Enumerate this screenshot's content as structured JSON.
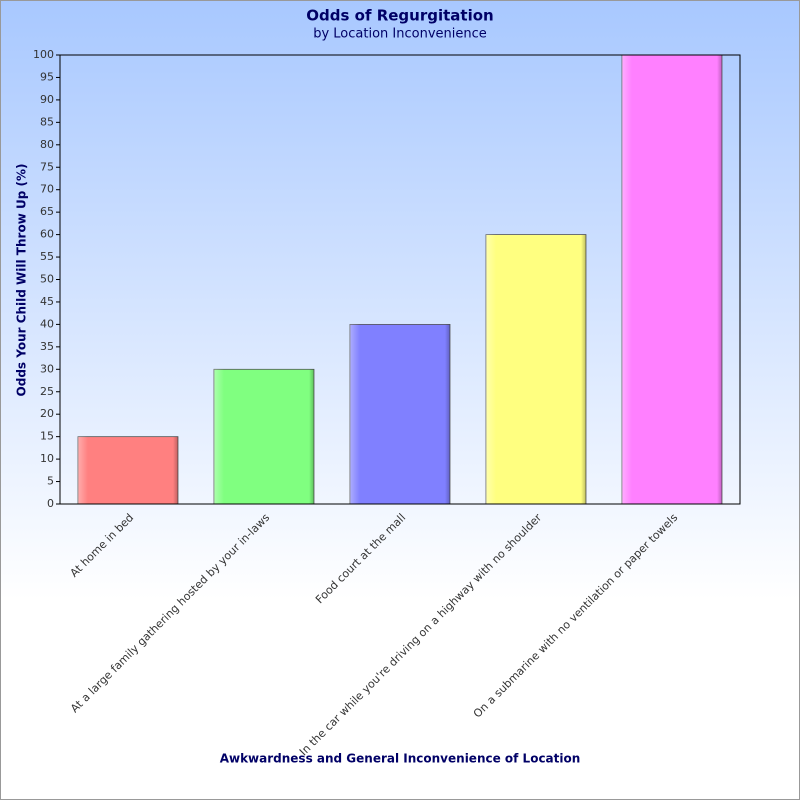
{
  "chart_data": {
    "type": "bar",
    "title": "Odds of Regurgitation",
    "subtitle": "by Location Inconvenience",
    "x_label": "Awkwardness and General Inconvenience of Location",
    "y_label": "Odds Your Child Will Throw Up (%)",
    "categories": [
      "At home in bed",
      "At a large family gathering hosted by your in-laws",
      "Food court at the mall",
      "In the car while you're driving on a highway with no shoulder",
      "On a submarine with no ventilation or paper towels"
    ],
    "values": [
      15,
      30,
      40,
      60,
      100
    ],
    "colors": [
      "#ff8080",
      "#80ff80",
      "#8080ff",
      "#ffff80",
      "#ff80ff"
    ],
    "ylim": [
      0,
      100
    ],
    "yticks": [
      0,
      5,
      10,
      15,
      20,
      25,
      30,
      35,
      40,
      45,
      50,
      55,
      60,
      65,
      70,
      75,
      80,
      85,
      90,
      95,
      100
    ],
    "grid": false
  }
}
